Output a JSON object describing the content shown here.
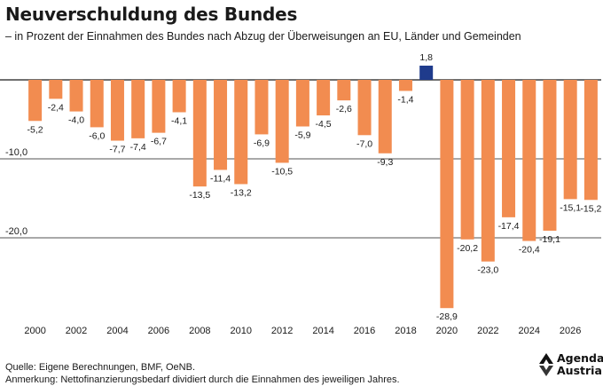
{
  "header": {
    "title": "Neuverschuldung des Bundes",
    "subtitle": "– in Prozent der Einnahmen des Bundes nach Abzug der Überweisungen an EU, Länder und Gemeinden"
  },
  "chart_data": {
    "type": "bar",
    "categories": [
      "2000",
      "2001",
      "2002",
      "2003",
      "2004",
      "2005",
      "2006",
      "2007",
      "2008",
      "2009",
      "2010",
      "2011",
      "2012",
      "2013",
      "2014",
      "2015",
      "2016",
      "2017",
      "2018",
      "2019",
      "2020",
      "2021",
      "2022",
      "2023",
      "2024",
      "2025",
      "2026",
      "2027"
    ],
    "values": [
      -5.2,
      -2.4,
      -4.0,
      -6.0,
      -7.7,
      -7.4,
      -6.7,
      -4.1,
      -13.5,
      -11.4,
      -13.2,
      -6.9,
      -10.5,
      -5.9,
      -4.5,
      -2.6,
      -7.0,
      -9.3,
      -1.4,
      1.8,
      -28.9,
      -20.2,
      -23.0,
      -17.4,
      -20.4,
      -19.1,
      -15.1,
      -15.2
    ],
    "data_labels": [
      "-5,2",
      "-2,4",
      "-4,0",
      "-6,0",
      "-7,7",
      "-7,4",
      "-6,7",
      "-4,1",
      "-13,5",
      "-11,4",
      "-13,2",
      "-6,9",
      "-10,5",
      "-5,9",
      "-4,5",
      "-2,6",
      "-7,0",
      "-9,3",
      "-1,4",
      "1,8",
      "-28,9",
      "-20,2",
      "-23,0",
      "-17,4",
      "-20,4",
      "-19,1",
      "-15,1",
      "-15,2"
    ],
    "x_tick_labels": [
      "2000",
      "2002",
      "2004",
      "2006",
      "2008",
      "2010",
      "2012",
      "2014",
      "2016",
      "2018",
      "2020",
      "2022",
      "2024",
      "2026"
    ],
    "y_ticks": [
      0,
      -10,
      -20
    ],
    "y_tick_labels": [
      "",
      "-10,0",
      "-20,0"
    ],
    "ylim": [
      -30,
      2.5
    ],
    "grid": true,
    "colors": {
      "negative": "#f28c50",
      "positive": "#1f3b8c",
      "axis": "#1a1a1a",
      "grid": "#1a1a1a"
    }
  },
  "footer": {
    "source": "Quelle: Eigene Berechnungen, BMF, OeNB.",
    "note": "Anmerkung: Nettofinanzierungsbedarf dividiert durch die Einnahmen des jeweiligen Jahres."
  },
  "logo": {
    "line1": "Agenda",
    "line2": "Austria"
  }
}
